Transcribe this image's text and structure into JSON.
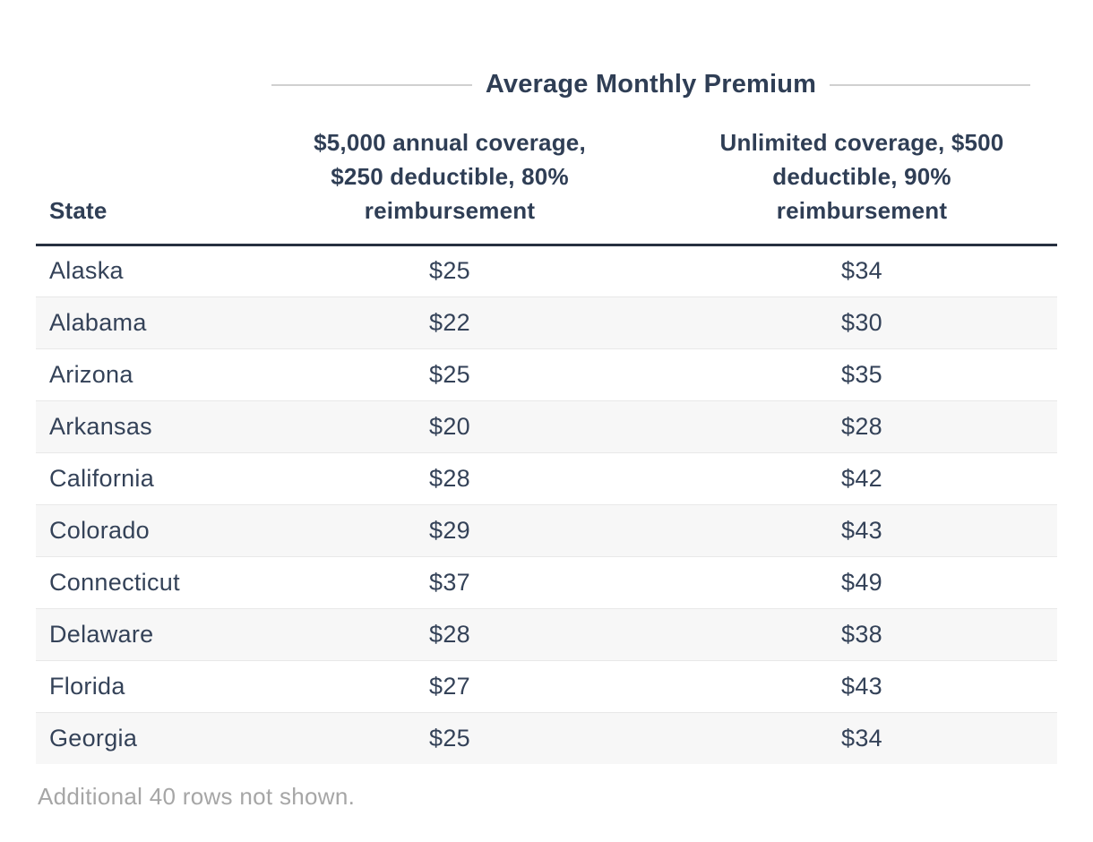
{
  "title": "Average Monthly Premium",
  "table": {
    "columns": {
      "state": "State",
      "plan_5000": "$5,000 annual coverage,\n$250 deductible, 80%\nreimbursement",
      "unlimited": "Unlimited coverage, $500\ndeductible, 90%\nreimbursement"
    },
    "rows": [
      {
        "state": "Alaska",
        "plan_5000": "$25",
        "unlimited": "$34"
      },
      {
        "state": "Alabama",
        "plan_5000": "$22",
        "unlimited": "$30"
      },
      {
        "state": "Arizona",
        "plan_5000": "$25",
        "unlimited": "$35"
      },
      {
        "state": "Arkansas",
        "plan_5000": "$20",
        "unlimited": "$28"
      },
      {
        "state": "California",
        "plan_5000": "$28",
        "unlimited": "$42"
      },
      {
        "state": "Colorado",
        "plan_5000": "$29",
        "unlimited": "$43"
      },
      {
        "state": "Connecticut",
        "plan_5000": "$37",
        "unlimited": "$49"
      },
      {
        "state": "Delaware",
        "plan_5000": "$28",
        "unlimited": "$38"
      },
      {
        "state": "Florida",
        "plan_5000": "$27",
        "unlimited": "$43"
      },
      {
        "state": "Georgia",
        "plan_5000": "$25",
        "unlimited": "$34"
      }
    ]
  },
  "footer_note": "Additional 40 rows not shown.",
  "colors": {
    "text_navy": "#344258",
    "heading_navy": "#2f3e55",
    "header_border": "#273040",
    "row_stripe": "#f7f7f7",
    "row_divider": "#e8e8e8",
    "title_rule": "#d0d0d0",
    "footer_text": "#a6a6a6",
    "background": "#ffffff"
  },
  "chart_data": {
    "type": "table",
    "title": "Average Monthly Premium",
    "categories": [
      "Alaska",
      "Alabama",
      "Arizona",
      "Arkansas",
      "California",
      "Colorado",
      "Connecticut",
      "Delaware",
      "Florida",
      "Georgia"
    ],
    "series": [
      {
        "name": "$5,000 annual coverage, $250 deductible, 80% reimbursement",
        "values": [
          25,
          22,
          25,
          20,
          28,
          29,
          37,
          28,
          27,
          25
        ]
      },
      {
        "name": "Unlimited coverage, $500 deductible, 90% reimbursement",
        "values": [
          34,
          30,
          35,
          28,
          42,
          43,
          49,
          38,
          43,
          34
        ]
      }
    ],
    "units": "USD per month",
    "note": "Additional 40 rows not shown."
  }
}
